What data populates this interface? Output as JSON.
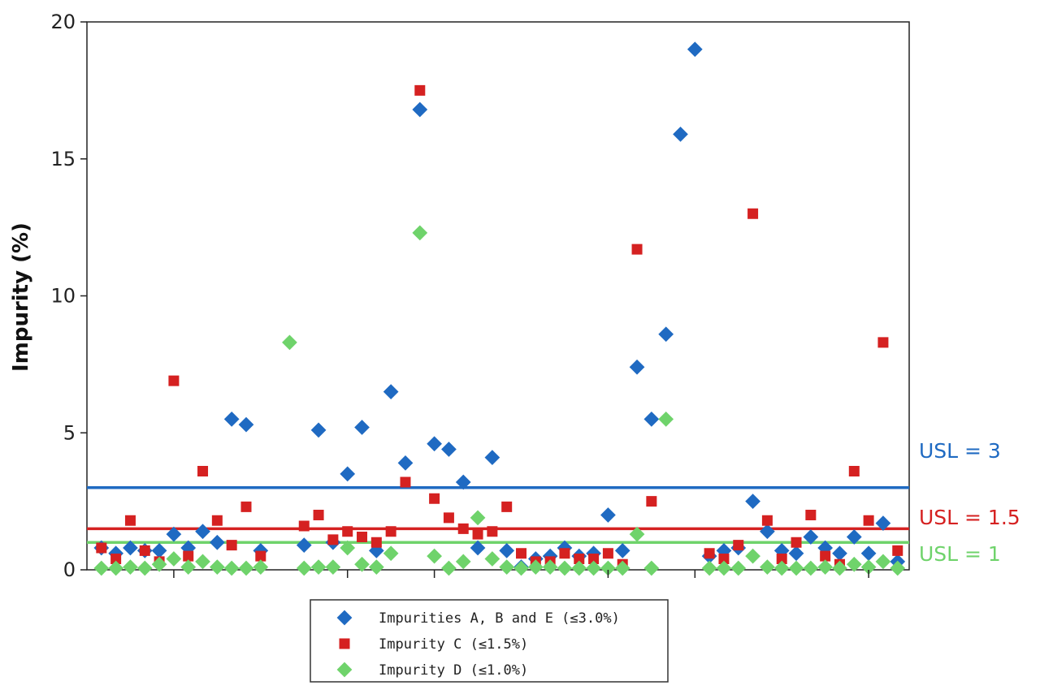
{
  "chart_data": {
    "type": "scatter",
    "ylabel": "Impurity (%)",
    "ylim": [
      0,
      20
    ],
    "yticks": [
      "0",
      "5",
      "10",
      "15",
      "20"
    ],
    "xlim": [
      0,
      56.8
    ],
    "xtick_positions": [
      6,
      18,
      24,
      36,
      42,
      54
    ],
    "grid": false,
    "legend_position": "bottom-center",
    "series": [
      {
        "name": "Impurities A, B and E (≤3.0%)",
        "color": "#1f6ac2",
        "marker": "diamond",
        "points": [
          [
            1,
            0.8
          ],
          [
            2,
            0.6
          ],
          [
            3,
            0.8
          ],
          [
            4,
            0.7
          ],
          [
            5,
            0.7
          ],
          [
            6,
            1.3
          ],
          [
            7,
            0.8
          ],
          [
            8,
            1.4
          ],
          [
            9,
            1.0
          ],
          [
            10,
            5.5
          ],
          [
            11,
            5.3
          ],
          [
            12,
            0.7
          ],
          [
            15,
            0.9
          ],
          [
            16,
            5.1
          ],
          [
            17,
            1.0
          ],
          [
            18,
            3.5
          ],
          [
            19,
            5.2
          ],
          [
            20,
            0.7
          ],
          [
            21,
            6.5
          ],
          [
            22,
            3.9
          ],
          [
            23,
            16.8
          ],
          [
            24,
            4.6
          ],
          [
            25,
            4.4
          ],
          [
            26,
            3.2
          ],
          [
            27,
            0.8
          ],
          [
            28,
            4.1
          ],
          [
            29,
            0.7
          ],
          [
            30,
            0.1
          ],
          [
            31,
            0.4
          ],
          [
            32,
            0.5
          ],
          [
            33,
            0.8
          ],
          [
            34,
            0.5
          ],
          [
            35,
            0.6
          ],
          [
            36,
            2.0
          ],
          [
            37,
            0.7
          ],
          [
            38,
            7.4
          ],
          [
            39,
            5.5
          ],
          [
            40,
            8.6
          ],
          [
            41,
            15.9
          ],
          [
            42,
            19.0
          ],
          [
            43,
            0.5
          ],
          [
            44,
            0.7
          ],
          [
            45,
            0.8
          ],
          [
            46,
            2.5
          ],
          [
            47,
            1.4
          ],
          [
            48,
            0.7
          ],
          [
            49,
            0.6
          ],
          [
            50,
            1.2
          ],
          [
            51,
            0.8
          ],
          [
            52,
            0.6
          ],
          [
            53,
            1.2
          ],
          [
            54,
            0.6
          ],
          [
            55,
            1.7
          ],
          [
            56,
            0.3
          ]
        ]
      },
      {
        "name": "Impurity C (≤1.5%)",
        "color": "#d52121",
        "marker": "square",
        "points": [
          [
            1,
            0.8
          ],
          [
            2,
            0.4
          ],
          [
            3,
            1.8
          ],
          [
            4,
            0.7
          ],
          [
            5,
            0.3
          ],
          [
            6,
            6.9
          ],
          [
            7,
            0.5
          ],
          [
            8,
            3.6
          ],
          [
            9,
            1.8
          ],
          [
            10,
            0.9
          ],
          [
            11,
            2.3
          ],
          [
            12,
            0.5
          ],
          [
            15,
            1.6
          ],
          [
            16,
            2.0
          ],
          [
            17,
            1.1
          ],
          [
            18,
            1.4
          ],
          [
            19,
            1.2
          ],
          [
            20,
            1.0
          ],
          [
            21,
            1.4
          ],
          [
            22,
            3.2
          ],
          [
            23,
            17.5
          ],
          [
            24,
            2.6
          ],
          [
            25,
            1.9
          ],
          [
            26,
            1.5
          ],
          [
            27,
            1.3
          ],
          [
            28,
            1.4
          ],
          [
            29,
            2.3
          ],
          [
            30,
            0.6
          ],
          [
            31,
            0.3
          ],
          [
            32,
            0.3
          ],
          [
            33,
            0.6
          ],
          [
            34,
            0.4
          ],
          [
            35,
            0.4
          ],
          [
            36,
            0.6
          ],
          [
            37,
            0.2
          ],
          [
            38,
            11.7
          ],
          [
            39,
            2.5
          ],
          [
            43,
            0.6
          ],
          [
            44,
            0.4
          ],
          [
            45,
            0.9
          ],
          [
            46,
            13.0
          ],
          [
            47,
            1.8
          ],
          [
            48,
            0.4
          ],
          [
            49,
            1.0
          ],
          [
            50,
            2.0
          ],
          [
            51,
            0.5
          ],
          [
            52,
            0.2
          ],
          [
            53,
            3.6
          ],
          [
            54,
            1.8
          ],
          [
            55,
            8.3
          ],
          [
            56,
            0.7
          ]
        ]
      },
      {
        "name": "Impurity D (≤1.0%)",
        "color": "#6fd36b",
        "marker": "diamond",
        "points": [
          [
            1,
            0.0
          ],
          [
            2,
            0.0
          ],
          [
            3,
            0.1
          ],
          [
            4,
            0.0
          ],
          [
            5,
            0.2
          ],
          [
            6,
            0.4
          ],
          [
            7,
            0.1
          ],
          [
            8,
            0.3
          ],
          [
            9,
            0.1
          ],
          [
            10,
            0.0
          ],
          [
            11,
            0.0
          ],
          [
            12,
            0.1
          ],
          [
            14,
            8.3
          ],
          [
            15,
            0.0
          ],
          [
            16,
            0.1
          ],
          [
            17,
            0.1
          ],
          [
            18,
            0.8
          ],
          [
            19,
            0.2
          ],
          [
            20,
            0.1
          ],
          [
            21,
            0.6
          ],
          [
            23,
            12.3
          ],
          [
            24,
            0.5
          ],
          [
            25,
            0.0
          ],
          [
            26,
            0.3
          ],
          [
            27,
            1.9
          ],
          [
            28,
            0.4
          ],
          [
            29,
            0.1
          ],
          [
            30,
            0.0
          ],
          [
            31,
            0.1
          ],
          [
            32,
            0.1
          ],
          [
            33,
            0.0
          ],
          [
            34,
            0.0
          ],
          [
            35,
            0.0
          ],
          [
            36,
            0.0
          ],
          [
            37,
            0.0
          ],
          [
            38,
            1.3
          ],
          [
            39,
            0.0
          ],
          [
            40,
            5.5
          ],
          [
            43,
            0.0
          ],
          [
            44,
            0.0
          ],
          [
            45,
            0.0
          ],
          [
            46,
            0.5
          ],
          [
            47,
            0.1
          ],
          [
            48,
            0.0
          ],
          [
            49,
            0.0
          ],
          [
            50,
            0.0
          ],
          [
            51,
            0.1
          ],
          [
            52,
            0.0
          ],
          [
            53,
            0.2
          ],
          [
            54,
            0.1
          ],
          [
            55,
            0.3
          ],
          [
            56,
            0.0
          ]
        ]
      }
    ],
    "reference_lines": [
      {
        "label": "USL = 3",
        "value": 3,
        "color": "#1f6ac2"
      },
      {
        "label": "USL = 1.5",
        "value": 1.5,
        "color": "#d52121"
      },
      {
        "label": "USL = 1",
        "value": 1,
        "color": "#6fd36b"
      }
    ]
  }
}
